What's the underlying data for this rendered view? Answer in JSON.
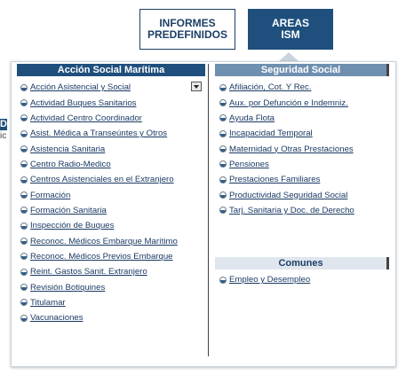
{
  "top_buttons": {
    "informes": [
      "INFORMES",
      "PREDEFINIDOS"
    ],
    "areas": [
      "AREAS",
      "ISM"
    ]
  },
  "side_fragment": {
    "letter": "D",
    "text": "ic"
  },
  "left_column": {
    "title": "Acción Social Marítima",
    "items": [
      "Acción Asistencial y Social",
      "Actividad Buques Sanitarios",
      "Actividad Centro Coordinador",
      "Asist. Médica a Transeúntes y Otros",
      "Asistencia Sanitaria",
      "Centro Radio-Medico",
      "Centros Asistenciales en el Extranjero",
      "Formación",
      "Formación Sanitaria",
      "Inspección de Buques",
      "Reconoc. Médicos Embarque Marítimo",
      "Reconoc. Médicos Previos Embarque",
      "Reint. Gastos Sanit. Extranjero",
      "Revisión Botiquines",
      "Titulamar",
      "Vacunaciones"
    ]
  },
  "right_column": {
    "title": "Seguridad Social",
    "items": [
      "Afiliación, Cot. Y Rec.",
      "Aux. por Defunción e Indemniz.",
      "Ayuda Flota",
      "Incapacidad Temporal",
      "Maternidad y Otras Prestaciones",
      "Pensiones",
      "Prestaciones Familiares",
      "Productividad Seguridad Social",
      "Tarj. Sanitaria y Doc. de Derecho"
    ]
  },
  "comunes": {
    "title": "Comunes",
    "items": [
      "Empleo y Desempleo"
    ]
  }
}
